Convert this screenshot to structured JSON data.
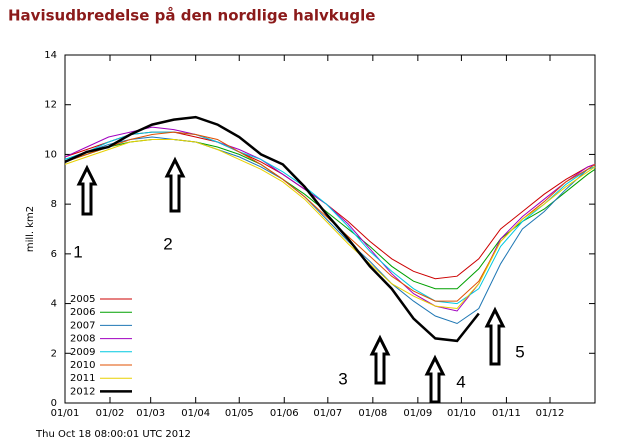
{
  "chart_data": {
    "type": "line",
    "title": "Havisudbredelse på den nordlige halvkugle",
    "y_label": "mill. km2",
    "footer": "Thu Oct 18 08:00:01 UTC 2012",
    "annotations": [
      "1",
      "2",
      "3",
      "4",
      "5"
    ],
    "x": [
      0,
      15,
      30,
      45,
      60,
      75,
      90,
      105,
      120,
      135,
      150,
      165,
      180,
      195,
      210,
      225,
      240,
      255,
      270,
      285,
      300,
      315,
      330,
      345,
      360,
      365
    ],
    "xlim": [
      0,
      365
    ],
    "xticks": [
      {
        "value": 0,
        "label": "01/01"
      },
      {
        "value": 31,
        "label": "01/02"
      },
      {
        "value": 59,
        "label": "01/03"
      },
      {
        "value": 90,
        "label": "01/04"
      },
      {
        "value": 120,
        "label": "01/05"
      },
      {
        "value": 151,
        "label": "01/06"
      },
      {
        "value": 181,
        "label": "01/07"
      },
      {
        "value": 212,
        "label": "01/08"
      },
      {
        "value": 243,
        "label": "01/09"
      },
      {
        "value": 273,
        "label": "01/10"
      },
      {
        "value": 304,
        "label": "01/11"
      },
      {
        "value": 334,
        "label": "01/12"
      }
    ],
    "ylim": [
      0,
      14
    ],
    "yticks": [
      0,
      2,
      4,
      6,
      8,
      10,
      12,
      14
    ],
    "grid": false,
    "legend": "bottom-left",
    "series": [
      {
        "name": "2005",
        "color": "#cc0000",
        "values": [
          9.9,
          10.2,
          10.5,
          10.8,
          10.9,
          10.9,
          10.7,
          10.5,
          10.1,
          9.7,
          9.2,
          8.6,
          8.0,
          7.3,
          6.5,
          5.8,
          5.3,
          5.0,
          5.1,
          5.8,
          7.0,
          7.7,
          8.4,
          9.0,
          9.5,
          9.6
        ]
      },
      {
        "name": "2006",
        "color": "#00a000",
        "values": [
          9.7,
          10.0,
          10.3,
          10.5,
          10.6,
          10.6,
          10.5,
          10.3,
          10.0,
          9.6,
          9.0,
          8.4,
          7.7,
          7.0,
          6.3,
          5.5,
          4.9,
          4.6,
          4.6,
          5.4,
          6.6,
          7.3,
          7.8,
          8.5,
          9.2,
          9.4
        ]
      },
      {
        "name": "2007",
        "color": "#1f77b4",
        "values": [
          9.8,
          10.1,
          10.4,
          10.6,
          10.7,
          10.6,
          10.5,
          10.2,
          9.9,
          9.5,
          9.0,
          8.3,
          7.4,
          6.5,
          5.7,
          4.8,
          4.1,
          3.5,
          3.2,
          3.8,
          5.6,
          7.0,
          7.7,
          8.6,
          9.4,
          9.5
        ]
      },
      {
        "name": "2008",
        "color": "#a000c0",
        "values": [
          9.9,
          10.3,
          10.7,
          10.9,
          11.1,
          11.0,
          10.8,
          10.5,
          10.2,
          9.8,
          9.2,
          8.6,
          8.0,
          7.2,
          6.2,
          5.2,
          4.4,
          3.9,
          3.7,
          4.8,
          6.6,
          7.5,
          8.2,
          8.9,
          9.5,
          9.6
        ]
      },
      {
        "name": "2009",
        "color": "#00c8e0",
        "values": [
          9.8,
          10.1,
          10.5,
          10.8,
          10.9,
          10.9,
          10.8,
          10.5,
          10.1,
          9.8,
          9.3,
          8.7,
          8.0,
          7.1,
          6.1,
          5.3,
          4.6,
          4.1,
          4.0,
          4.6,
          6.3,
          7.3,
          8.0,
          8.8,
          9.4,
          9.5
        ]
      },
      {
        "name": "2010",
        "color": "#e05000",
        "values": [
          9.7,
          10.0,
          10.3,
          10.6,
          10.8,
          10.9,
          10.8,
          10.6,
          10.1,
          9.6,
          9.0,
          8.3,
          7.5,
          6.7,
          5.9,
          5.1,
          4.5,
          4.1,
          4.1,
          4.9,
          6.5,
          7.4,
          8.1,
          8.9,
          9.4,
          9.6
        ]
      },
      {
        "name": "2011",
        "color": "#e8d000",
        "values": [
          9.6,
          9.9,
          10.2,
          10.5,
          10.6,
          10.6,
          10.5,
          10.2,
          9.8,
          9.4,
          8.9,
          8.2,
          7.3,
          6.4,
          5.6,
          4.8,
          4.3,
          3.9,
          3.8,
          4.8,
          6.5,
          7.4,
          8.0,
          8.7,
          9.3,
          9.5
        ]
      },
      {
        "name": "2012",
        "color": "#000000",
        "values": [
          9.7,
          10.1,
          10.3,
          10.8,
          11.2,
          11.4,
          11.5,
          11.2,
          10.7,
          10.0,
          9.6,
          8.7,
          7.6,
          6.6,
          5.5,
          4.6,
          3.4,
          2.6,
          2.5,
          3.6,
          null,
          null,
          null,
          null,
          null,
          null
        ]
      }
    ]
  }
}
